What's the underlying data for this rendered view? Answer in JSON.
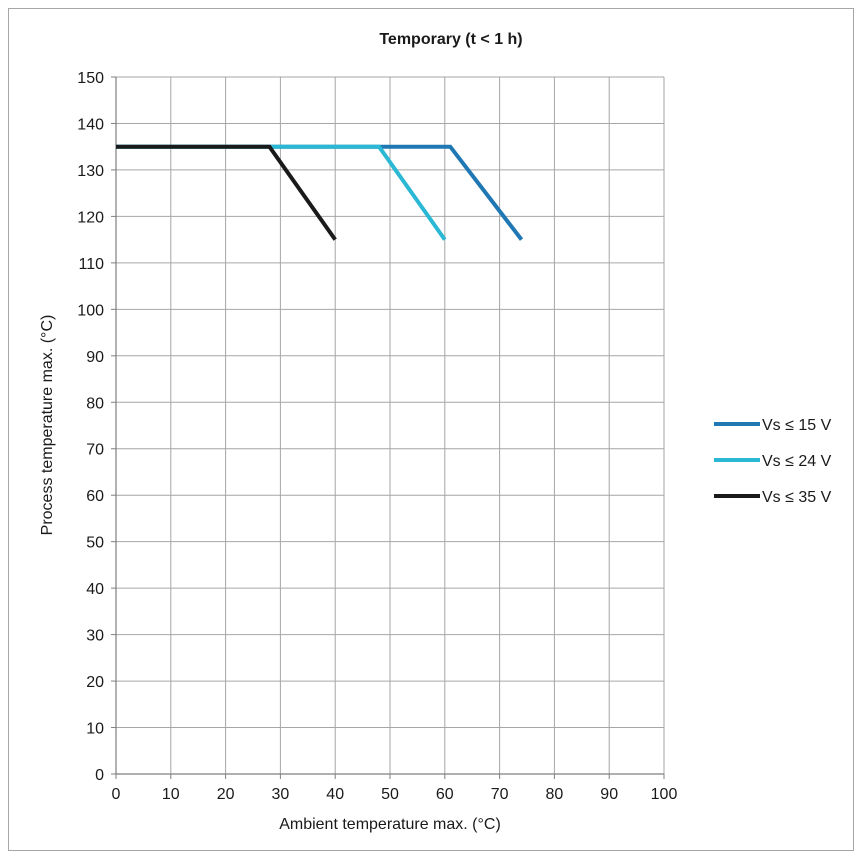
{
  "chart_data": {
    "type": "line",
    "title": "Temporary (t < 1 h)",
    "xlabel": "Ambient temperature max. (°C)",
    "ylabel": "Process temperature max. (°C)",
    "xlim": [
      0,
      100
    ],
    "ylim": [
      0,
      150
    ],
    "xticks": [
      0,
      10,
      20,
      30,
      40,
      50,
      60,
      70,
      80,
      90,
      100
    ],
    "yticks": [
      0,
      10,
      20,
      30,
      40,
      50,
      60,
      70,
      80,
      90,
      100,
      110,
      120,
      130,
      140,
      150
    ],
    "grid": true,
    "legend_position": "right",
    "series": [
      {
        "name": "Vs ≤ 15 V",
        "color": "#1f78b4",
        "x": [
          0,
          61,
          74
        ],
        "y": [
          135,
          135,
          115
        ]
      },
      {
        "name": "Vs ≤ 24 V",
        "color": "#2ab8d4",
        "x": [
          0,
          48,
          60
        ],
        "y": [
          135,
          135,
          115
        ]
      },
      {
        "name": "Vs ≤ 35 V",
        "color": "#1a1a1a",
        "x": [
          0,
          28,
          40
        ],
        "y": [
          135,
          135,
          115
        ]
      }
    ]
  }
}
